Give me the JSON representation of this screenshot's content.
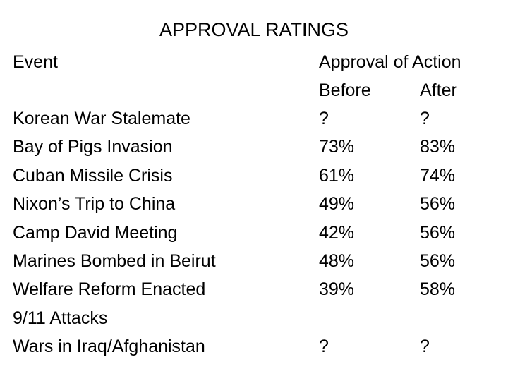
{
  "title": "APPROVAL RATINGS",
  "headers": {
    "event": "Event",
    "approval": "Approval of Action",
    "before": "Before",
    "after": "After"
  },
  "rows": [
    {
      "event": "Korean War Stalemate",
      "before": "?",
      "after": "?"
    },
    {
      "event": "Bay of Pigs Invasion",
      "before": "73%",
      "after": "83%"
    },
    {
      "event": "Cuban Missile Crisis",
      "before": "61%",
      "after": "74%"
    },
    {
      "event": "Nixon’s Trip to China",
      "before": "49%",
      "after": "56%"
    },
    {
      "event": "Camp David Meeting",
      "before": "42%",
      "after": "56%"
    },
    {
      "event": "Marines Bombed in Beirut",
      "before": "48%",
      "after": "56%"
    },
    {
      "event": "Welfare Reform Enacted",
      "before": "39%",
      "after": "58%"
    },
    {
      "event": "9/11 Attacks",
      "before": "",
      "after": ""
    },
    {
      "event": "Wars in Iraq/Afghanistan",
      "before": "?",
      "after": "?"
    }
  ]
}
